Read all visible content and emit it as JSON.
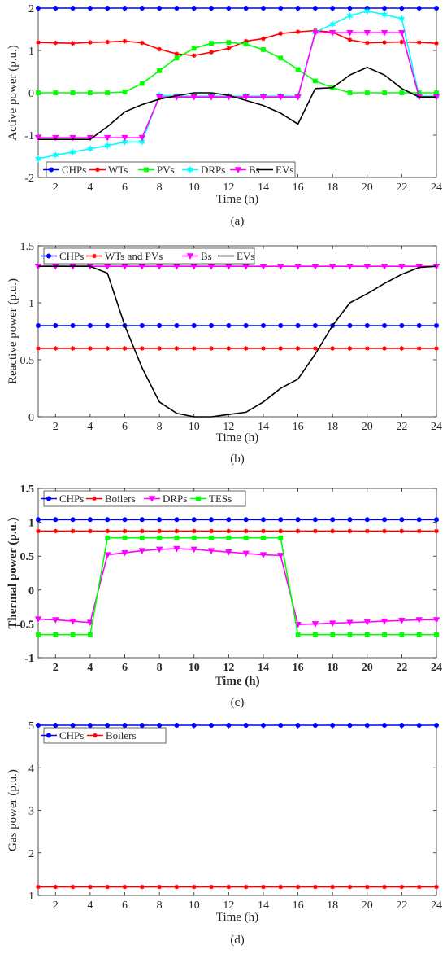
{
  "chart_data": [
    {
      "type": "line",
      "panel_label": "(a)",
      "xlabel": "Time (h)",
      "ylabel": "Active power (p.u.)",
      "xlim": [
        1,
        24
      ],
      "ylim": [
        -2,
        2
      ],
      "xticks": [
        2,
        4,
        6,
        8,
        10,
        12,
        14,
        16,
        18,
        20,
        22,
        24
      ],
      "yticks": [
        -2,
        -1,
        0,
        1,
        2
      ],
      "grid": false,
      "legend_position": "bottom",
      "legend_columns": 6,
      "x": [
        1,
        2,
        3,
        4,
        5,
        6,
        7,
        8,
        9,
        10,
        11,
        12,
        13,
        14,
        15,
        16,
        17,
        18,
        19,
        20,
        21,
        22,
        23,
        24
      ],
      "series": [
        {
          "name": "CHPs",
          "color": "#0000ff",
          "marker": "circle",
          "values": [
            2,
            2,
            2,
            2,
            2,
            2,
            2,
            2,
            2,
            2,
            2,
            2,
            2,
            2,
            2,
            2,
            2,
            2,
            2,
            2,
            2,
            2,
            2,
            2
          ]
        },
        {
          "name": "WTs",
          "color": "#ff0000",
          "marker": "star",
          "values": [
            1.19,
            1.18,
            1.17,
            1.19,
            1.2,
            1.22,
            1.18,
            1.03,
            0.92,
            0.88,
            0.96,
            1.05,
            1.22,
            1.28,
            1.4,
            1.44,
            1.47,
            1.43,
            1.25,
            1.18,
            1.19,
            1.2,
            1.19,
            1.17
          ]
        },
        {
          "name": "PVs",
          "color": "#00ff00",
          "marker": "square",
          "values": [
            0,
            0,
            0,
            0,
            0,
            0.02,
            0.22,
            0.52,
            0.82,
            1.05,
            1.17,
            1.19,
            1.15,
            1.02,
            0.82,
            0.55,
            0.28,
            0.12,
            0,
            0,
            0,
            0,
            0,
            0
          ]
        },
        {
          "name": "DRPs",
          "color": "#00ffff",
          "marker": "hexagram",
          "values": [
            -1.56,
            -1.47,
            -1.4,
            -1.32,
            -1.25,
            -1.16,
            -1.16,
            -0.06,
            -0.08,
            -0.08,
            -0.08,
            -0.08,
            -0.08,
            -0.08,
            -0.08,
            -0.08,
            1.43,
            1.62,
            1.82,
            1.93,
            1.85,
            1.75,
            -0.08,
            -0.08
          ]
        },
        {
          "name": "Bs",
          "color": "#ff00ff",
          "marker": "triangle-down",
          "values": [
            -1.06,
            -1.06,
            -1.06,
            -1.06,
            -1.06,
            -1.06,
            -1.06,
            -0.1,
            -0.1,
            -0.1,
            -0.1,
            -0.1,
            -0.1,
            -0.1,
            -0.1,
            -0.1,
            1.42,
            1.42,
            1.42,
            1.42,
            1.42,
            1.42,
            -0.1,
            -0.1
          ]
        },
        {
          "name": "EVs",
          "color": "#000000",
          "marker": "none",
          "values": [
            -1.1,
            -1.1,
            -1.1,
            -1.1,
            -0.8,
            -0.45,
            -0.28,
            -0.15,
            -0.07,
            0,
            0,
            -0.06,
            -0.18,
            -0.3,
            -0.48,
            -0.74,
            0.1,
            0.12,
            0.42,
            0.6,
            0.42,
            0.1,
            -0.1,
            -0.1
          ]
        }
      ]
    },
    {
      "type": "line",
      "panel_label": "(b)",
      "xlabel": "Time (h)",
      "ylabel": "Reactive power (p.u.)",
      "xlim": [
        1,
        24
      ],
      "ylim": [
        0,
        1.5
      ],
      "xticks": [
        2,
        4,
        6,
        8,
        10,
        12,
        14,
        16,
        18,
        20,
        22,
        24
      ],
      "yticks": [
        0,
        0.5,
        1,
        1.5
      ],
      "grid": false,
      "legend_position": "top",
      "legend_columns": 4,
      "x": [
        1,
        2,
        3,
        4,
        5,
        6,
        7,
        8,
        9,
        10,
        11,
        12,
        13,
        14,
        15,
        16,
        17,
        18,
        19,
        20,
        21,
        22,
        23,
        24
      ],
      "series": [
        {
          "name": "CHPs",
          "color": "#0000ff",
          "marker": "circle",
          "values": [
            0.8,
            0.8,
            0.8,
            0.8,
            0.8,
            0.8,
            0.8,
            0.8,
            0.8,
            0.8,
            0.8,
            0.8,
            0.8,
            0.8,
            0.8,
            0.8,
            0.8,
            0.8,
            0.8,
            0.8,
            0.8,
            0.8,
            0.8,
            0.8
          ]
        },
        {
          "name": "WTs and PVs",
          "color": "#ff0000",
          "marker": "star",
          "values": [
            0.6,
            0.6,
            0.6,
            0.6,
            0.6,
            0.6,
            0.6,
            0.6,
            0.6,
            0.6,
            0.6,
            0.6,
            0.6,
            0.6,
            0.6,
            0.6,
            0.6,
            0.6,
            0.6,
            0.6,
            0.6,
            0.6,
            0.6,
            0.6
          ]
        },
        {
          "name": "Bs",
          "color": "#ff00ff",
          "marker": "triangle-down",
          "values": [
            1.32,
            1.32,
            1.32,
            1.32,
            1.32,
            1.32,
            1.32,
            1.32,
            1.32,
            1.32,
            1.32,
            1.32,
            1.32,
            1.32,
            1.32,
            1.32,
            1.32,
            1.32,
            1.32,
            1.32,
            1.32,
            1.32,
            1.32,
            1.32
          ]
        },
        {
          "name": "EVs",
          "color": "#000000",
          "marker": "none",
          "values": [
            1.32,
            1.32,
            1.32,
            1.32,
            1.26,
            0.8,
            0.43,
            0.13,
            0.03,
            0,
            0,
            0.02,
            0.04,
            0.13,
            0.25,
            0.33,
            0.55,
            0.8,
            1.0,
            1.08,
            1.17,
            1.25,
            1.31,
            1.32
          ]
        }
      ]
    },
    {
      "type": "line",
      "panel_label": "(c)",
      "xlabel": "Time (h)",
      "ylabel": "Thermal power (p.u.)",
      "xlim": [
        1,
        24
      ],
      "ylim": [
        -1,
        1.5
      ],
      "xticks": [
        2,
        4,
        6,
        8,
        10,
        12,
        14,
        16,
        18,
        20,
        22,
        24
      ],
      "yticks": [
        -1,
        -0.5,
        0,
        0.5,
        1,
        1.5
      ],
      "grid": false,
      "legend_position": "top",
      "legend_columns": 4,
      "x": [
        1,
        2,
        3,
        4,
        5,
        6,
        7,
        8,
        9,
        10,
        11,
        12,
        13,
        14,
        15,
        16,
        17,
        18,
        19,
        20,
        21,
        22,
        23,
        24
      ],
      "series": [
        {
          "name": "CHPs",
          "color": "#0000ff",
          "marker": "circle",
          "values": [
            1.04,
            1.04,
            1.04,
            1.04,
            1.04,
            1.04,
            1.04,
            1.04,
            1.04,
            1.04,
            1.04,
            1.04,
            1.04,
            1.04,
            1.04,
            1.04,
            1.04,
            1.04,
            1.04,
            1.04,
            1.04,
            1.04,
            1.04,
            1.04
          ]
        },
        {
          "name": "Boilers",
          "color": "#ff0000",
          "marker": "star",
          "values": [
            0.87,
            0.87,
            0.87,
            0.87,
            0.87,
            0.87,
            0.87,
            0.87,
            0.87,
            0.87,
            0.87,
            0.87,
            0.87,
            0.87,
            0.87,
            0.87,
            0.87,
            0.87,
            0.87,
            0.87,
            0.87,
            0.87,
            0.87,
            0.87
          ]
        },
        {
          "name": "DRPs",
          "color": "#ff00ff",
          "marker": "triangle-down",
          "values": [
            -0.43,
            -0.44,
            -0.46,
            -0.48,
            0.52,
            0.55,
            0.58,
            0.6,
            0.61,
            0.6,
            0.58,
            0.56,
            0.54,
            0.52,
            0.51,
            -0.51,
            -0.5,
            -0.49,
            -0.48,
            -0.47,
            -0.46,
            -0.45,
            -0.44,
            -0.44
          ]
        },
        {
          "name": "TESs",
          "color": "#00ff00",
          "marker": "square",
          "values": [
            -0.66,
            -0.66,
            -0.66,
            -0.66,
            0.77,
            0.77,
            0.77,
            0.77,
            0.77,
            0.77,
            0.77,
            0.77,
            0.77,
            0.77,
            0.77,
            -0.66,
            -0.66,
            -0.66,
            -0.66,
            -0.66,
            -0.66,
            -0.66,
            -0.66,
            -0.66
          ]
        }
      ]
    },
    {
      "type": "line",
      "panel_label": "(d)",
      "xlabel": "Time (h)",
      "ylabel": "Gas power (p.u.)",
      "xlim": [
        1,
        24
      ],
      "ylim": [
        1,
        5
      ],
      "xticks": [
        2,
        4,
        6,
        8,
        10,
        12,
        14,
        16,
        18,
        20,
        22,
        24
      ],
      "yticks": [
        1,
        2,
        3,
        4,
        5
      ],
      "grid": false,
      "legend_position": "top-left",
      "legend_columns": 2,
      "x": [
        1,
        2,
        3,
        4,
        5,
        6,
        7,
        8,
        9,
        10,
        11,
        12,
        13,
        14,
        15,
        16,
        17,
        18,
        19,
        20,
        21,
        22,
        23,
        24
      ],
      "series": [
        {
          "name": "CHPs",
          "color": "#0000ff",
          "marker": "circle",
          "values": [
            5,
            5,
            5,
            5,
            5,
            5,
            5,
            5,
            5,
            5,
            5,
            5,
            5,
            5,
            5,
            5,
            5,
            5,
            5,
            5,
            5,
            5,
            5,
            5
          ]
        },
        {
          "name": "Boilers",
          "color": "#ff0000",
          "marker": "star",
          "values": [
            1.2,
            1.2,
            1.2,
            1.2,
            1.2,
            1.2,
            1.2,
            1.2,
            1.2,
            1.2,
            1.2,
            1.2,
            1.2,
            1.2,
            1.2,
            1.2,
            1.2,
            1.2,
            1.2,
            1.2,
            1.2,
            1.2,
            1.2,
            1.2
          ]
        }
      ]
    }
  ]
}
